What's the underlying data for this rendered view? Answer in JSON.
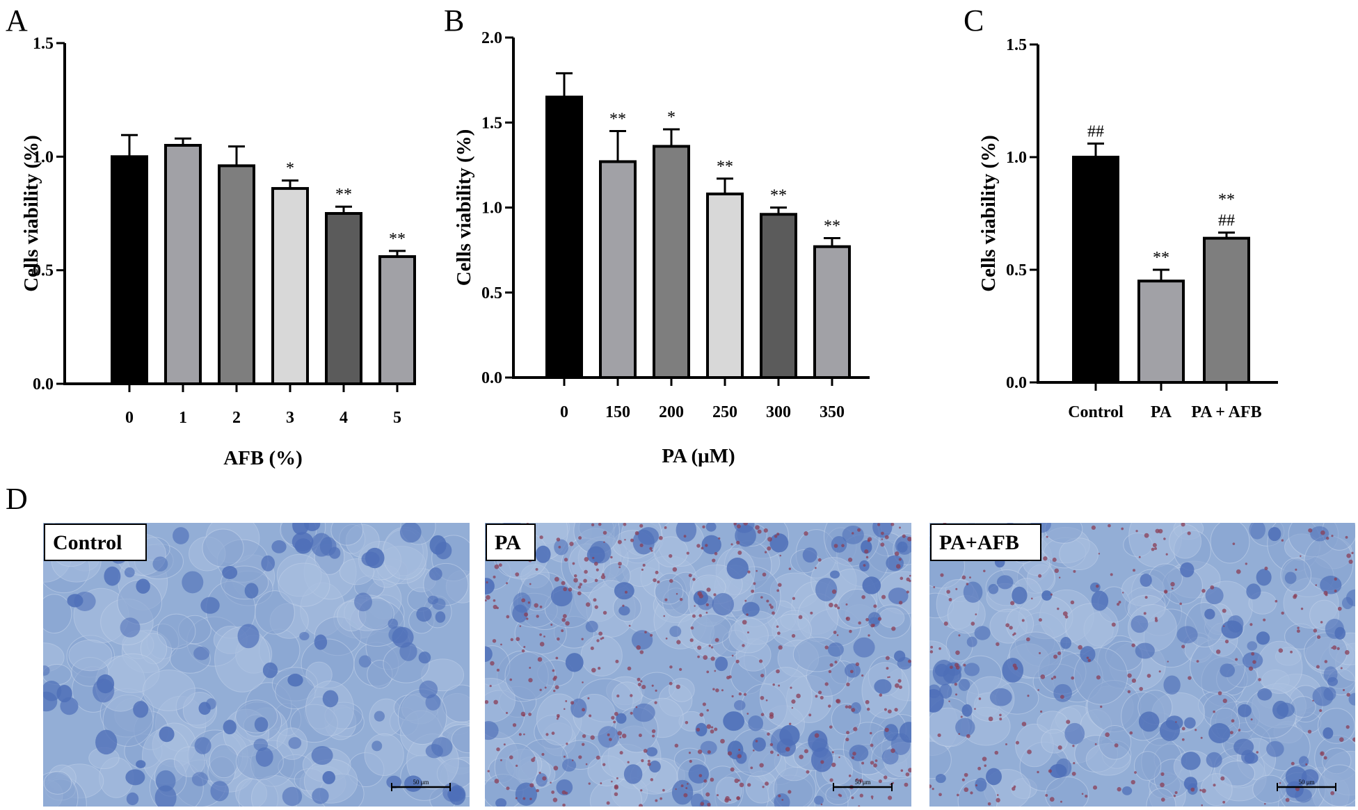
{
  "figure": {
    "panel_letters": {
      "a": "A",
      "b": "B",
      "c": "C",
      "d": "D"
    },
    "colors": {
      "black": "#000000",
      "light_gray": "#a1a1a6",
      "mid_gray": "#7e7e7e",
      "very_light": "#d8d8d8",
      "dark_gray": "#5b5b5b",
      "cell_bg": "#93aed6",
      "nucleus": "#4e6fb8",
      "lipid_droplet": "#8a3d55"
    },
    "micrographs": [
      {
        "label": "Control",
        "scale_bar": "50 μm",
        "lipid_density": "none"
      },
      {
        "label": "PA",
        "scale_bar": "50 μm",
        "lipid_density": "high"
      },
      {
        "label": "PA+AFB",
        "scale_bar": "50 μm",
        "lipid_density": "medium"
      }
    ]
  },
  "chart_data": [
    {
      "id": "A",
      "type": "bar",
      "categories": [
        "0",
        "1",
        "2",
        "3",
        "4",
        "5"
      ],
      "values": [
        1.0,
        1.05,
        0.96,
        0.86,
        0.75,
        0.56
      ],
      "errors": [
        0.095,
        0.03,
        0.085,
        0.035,
        0.03,
        0.025
      ],
      "significance": [
        "",
        "",
        "",
        "*",
        "**",
        "**"
      ],
      "colors": [
        "#000000",
        "#a1a1a6",
        "#7e7e7e",
        "#d8d8d8",
        "#5b5b5b",
        "#a1a1a6"
      ],
      "xlabel": "AFB (%)",
      "ylabel": "Cells viability (%)",
      "ylim": [
        0,
        1.5
      ],
      "yticks": [
        "0.0",
        "0.5",
        "1.0",
        "1.5"
      ]
    },
    {
      "id": "B",
      "type": "bar",
      "categories": [
        "0",
        "150",
        "200",
        "250",
        "300",
        "350"
      ],
      "values": [
        1.65,
        1.27,
        1.36,
        1.08,
        0.96,
        0.77
      ],
      "errors": [
        0.14,
        0.18,
        0.1,
        0.09,
        0.04,
        0.05
      ],
      "significance": [
        "",
        "**",
        "*",
        "**",
        "**",
        "**"
      ],
      "colors": [
        "#000000",
        "#a1a1a6",
        "#7e7e7e",
        "#d8d8d8",
        "#5b5b5b",
        "#a1a1a6"
      ],
      "xlabel": "PA (μM)",
      "ylabel": "Cells viability (%)",
      "ylim": [
        0,
        2.0
      ],
      "yticks": [
        "0.0",
        "0.5",
        "1.0",
        "1.5",
        "2.0"
      ]
    },
    {
      "id": "C",
      "type": "bar",
      "categories": [
        "Control",
        "PA",
        "PA + AFB"
      ],
      "values": [
        1.0,
        0.45,
        0.64
      ],
      "errors": [
        0.06,
        0.05,
        0.025
      ],
      "significance": [
        "##",
        "**",
        "**\n##"
      ],
      "colors": [
        "#000000",
        "#a1a1a6",
        "#7e7e7e"
      ],
      "xlabel": "",
      "ylabel": "Cells viability (%)",
      "ylim": [
        0,
        1.5
      ],
      "yticks": [
        "0.0",
        "0.5",
        "1.0",
        "1.5"
      ]
    }
  ]
}
